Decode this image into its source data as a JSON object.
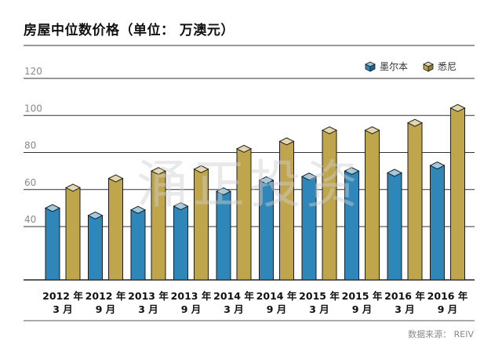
{
  "chart_data": {
    "type": "bar",
    "title": "房屋中位数价格（单位： 万澳元）",
    "categories": [
      [
        "2012 年",
        "3 月"
      ],
      [
        "2012 年",
        "9 月"
      ],
      [
        "2013 年",
        "3 月"
      ],
      [
        "2013 年",
        "9 月"
      ],
      [
        "2014 年",
        "3 月"
      ],
      [
        "2014 年",
        "9 月"
      ],
      [
        "2015 年",
        "3 月"
      ],
      [
        "2015 年",
        "9 月"
      ],
      [
        "2016 年",
        "3 月"
      ],
      [
        "2016 年",
        "9 月"
      ]
    ],
    "series": [
      {
        "name": "墨尔本",
        "color": "#2f86b8",
        "values": [
          50,
          46,
          49,
          51,
          59,
          65,
          67,
          70,
          69,
          73
        ]
      },
      {
        "name": "悉尼",
        "color": "#bfa64d",
        "values": [
          61,
          66,
          70,
          71,
          82,
          86,
          92,
          92,
          96,
          104
        ]
      }
    ],
    "yticks": [
      40,
      60,
      80,
      100,
      120
    ],
    "ylim": [
      10,
      120
    ],
    "grid": true,
    "legend_position": "top-right",
    "source": "数据来源： REIV",
    "watermark": "涌正投资"
  }
}
